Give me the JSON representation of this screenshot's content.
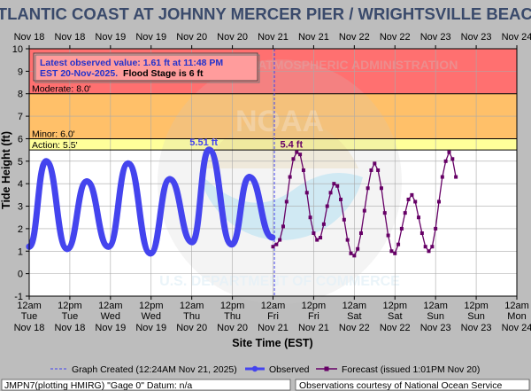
{
  "header": {
    "title": "ATLANTIC COAST AT JOHNNY MERCER PIER / WRIGHTSVILLE BEACH",
    "top_ticks": [
      "Nov 18",
      "Nov 18",
      "Nov 19",
      "Nov 19",
      "Nov 20",
      "Nov 20",
      "Nov 21",
      "Nov 21",
      "Nov 22",
      "Nov 22",
      "Nov 23",
      "Nov 23",
      "Nov 24"
    ]
  },
  "info_box": {
    "line1": "Latest observed value: 1.61 ft at 11:48 PM",
    "line2_date": "EST 20-Nov-2025.",
    "line2_stage": "Flood Stage is 6 ft"
  },
  "bottom_ticks": {
    "times": [
      "12am",
      "12pm",
      "12am",
      "12pm",
      "12am",
      "12pm",
      "12am",
      "12pm",
      "12am",
      "12pm",
      "12am",
      "12pm",
      "12am"
    ],
    "days": [
      "Tue",
      "Tue",
      "Wed",
      "Wed",
      "Thu",
      "Thu",
      "Fri",
      "Fri",
      "Sat",
      "Sat",
      "Sun",
      "Sun",
      "Mon"
    ],
    "dates": [
      "Nov 18",
      "Nov 18",
      "Nov 19",
      "Nov 19",
      "Nov 20",
      "Nov 20",
      "Nov 21",
      "Nov 21",
      "Nov 22",
      "Nov 22",
      "Nov 23",
      "Nov 23",
      "Nov 24"
    ]
  },
  "legend": {
    "created": "Graph Created (12:24AM Nov 21, 2025)",
    "observed": "Observed",
    "forecast": "Forecast (issued 1:01PM Nov 20)"
  },
  "footer": {
    "left": "JMPN7(plotting HMIRG) \"Gage 0\" Datum: n/a",
    "right": "Observations courtesy of National Ocean Service"
  },
  "watermark": {
    "logo_text": "NOAA",
    "ring_text": "NATIONAL OCEANIC AND ATMOSPHERIC ADMINISTRATION",
    "ring_bottom": "U.S. DEPARTMENT OF COMMERCE"
  },
  "colors": {
    "major": "#ff7070",
    "moderate": "#ffc069",
    "minor": "#ffff9a",
    "observed": "#4444ee",
    "forecast": "#660066",
    "title": "#3a4a6b"
  },
  "chart_data": {
    "type": "line",
    "xlabel": "Site Time (EST)",
    "ylabel": "Tide Height (ft)",
    "ylim": [
      -1,
      10
    ],
    "xlim_hours": [
      0,
      144
    ],
    "x_unit": "hours since 12am Tue Nov 18 (EST)",
    "yticks": [
      -1,
      0,
      1,
      2,
      3,
      4,
      5,
      6,
      7,
      8,
      9,
      10
    ],
    "grid": true,
    "thresholds": [
      {
        "name": "Action",
        "value": 5.5,
        "label": "Action: 5.5'"
      },
      {
        "name": "Minor",
        "value": 6.0,
        "label": "Minor: 6.0'"
      },
      {
        "name": "Moderate",
        "value": 8.0,
        "label": "Moderate: 8.0'"
      },
      {
        "name": "Major",
        "value": 10.0,
        "label": ""
      }
    ],
    "graph_created_hour": 72.4,
    "annotations": [
      {
        "text": "5.51 ft",
        "x": 53.1,
        "y": 5.51,
        "series": "observed"
      },
      {
        "text": "5.4 ft",
        "x": 79.0,
        "y": 5.4,
        "series": "forecast"
      }
    ],
    "series": [
      {
        "name": "Observed",
        "points": [
          [
            0,
            1.2
          ],
          [
            5.0,
            5.0
          ],
          [
            11.2,
            1.1
          ],
          [
            17.0,
            4.1
          ],
          [
            23.4,
            1.2
          ],
          [
            29.2,
            4.9
          ],
          [
            35.8,
            0.9
          ],
          [
            41.5,
            4.2
          ],
          [
            48.1,
            1.4
          ],
          [
            53.1,
            5.51
          ],
          [
            59.8,
            1.3
          ],
          [
            65.0,
            4.3
          ],
          [
            71.8,
            1.61
          ]
        ]
      },
      {
        "name": "Forecast",
        "points": [
          [
            72.0,
            1.2
          ],
          [
            73,
            1.3
          ],
          [
            74,
            1.5
          ],
          [
            75,
            2.1
          ],
          [
            76,
            3.2
          ],
          [
            77,
            4.3
          ],
          [
            78,
            5.1
          ],
          [
            79,
            5.4
          ],
          [
            80,
            5.3
          ],
          [
            81,
            4.6
          ],
          [
            82,
            3.6
          ],
          [
            83,
            2.5
          ],
          [
            84,
            1.8
          ],
          [
            85,
            1.5
          ],
          [
            86,
            1.6
          ],
          [
            87,
            2.2
          ],
          [
            88,
            3.0
          ],
          [
            89,
            3.6
          ],
          [
            90,
            4.0
          ],
          [
            91,
            3.9
          ],
          [
            92,
            3.3
          ],
          [
            93,
            2.4
          ],
          [
            94,
            1.5
          ],
          [
            95,
            0.9
          ],
          [
            96,
            0.8
          ],
          [
            97,
            1.1
          ],
          [
            98,
            1.8
          ],
          [
            99,
            2.8
          ],
          [
            100,
            3.8
          ],
          [
            101,
            4.6
          ],
          [
            102,
            4.9
          ],
          [
            103,
            4.6
          ],
          [
            104,
            3.8
          ],
          [
            105,
            2.7
          ],
          [
            106,
            1.7
          ],
          [
            107,
            1.0
          ],
          [
            108,
            0.9
          ],
          [
            109,
            1.3
          ],
          [
            110,
            2.0
          ],
          [
            111,
            2.7
          ],
          [
            112,
            3.3
          ],
          [
            113,
            3.5
          ],
          [
            114,
            3.2
          ],
          [
            115,
            2.5
          ],
          [
            116,
            1.8
          ],
          [
            117,
            1.2
          ],
          [
            118,
            1.0
          ],
          [
            119,
            1.2
          ],
          [
            120,
            2.0
          ],
          [
            121,
            3.2
          ],
          [
            122,
            4.3
          ],
          [
            123,
            5.0
          ],
          [
            124,
            5.4
          ],
          [
            125,
            5.1
          ],
          [
            126,
            4.3
          ]
        ]
      }
    ]
  }
}
